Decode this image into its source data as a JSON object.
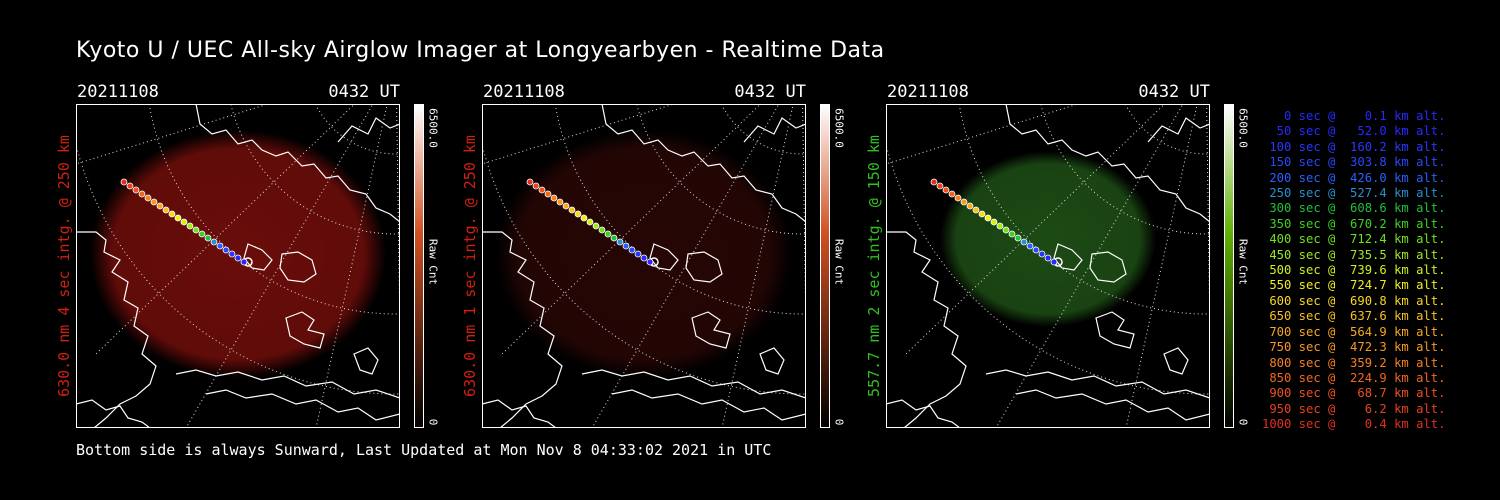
{
  "title": "Kyoto U / UEC All-sky Airglow Imager at Longyearbyen - Realtime Data",
  "footer": "Bottom side is always Sunward, Last Updated at Mon Nov  8 04:33:02 2021 in UTC",
  "panels": [
    {
      "date": "20211108",
      "time": "0432 UT",
      "ylabel": "630.0 nm 4 sec intg. @ 250 km",
      "ylabel_color": "#d02010",
      "cbar_max": "6500.0",
      "cbar_unit": "Raw Cnt",
      "cbar_min": "0",
      "cbar_top": "#ffffff",
      "cbar_mid": "#d05020",
      "cbar_bottom": "#000000",
      "glow": "#6a0d0a"
    },
    {
      "date": "20211108",
      "time": "0432 UT",
      "ylabel": "630.0 nm 1 sec intg. @ 250 km",
      "ylabel_color": "#d02010",
      "cbar_max": "6500.0",
      "cbar_unit": "Raw Cnt",
      "cbar_min": "0",
      "cbar_top": "#ffffff",
      "cbar_mid": "#d05020",
      "cbar_bottom": "#000000",
      "glow": "#260605"
    },
    {
      "date": "20211108",
      "time": "0432 UT",
      "ylabel": "557.7 nm 2 sec intg. @ 150 km",
      "ylabel_color": "#30c020",
      "cbar_max": "6500.0",
      "cbar_unit": "Raw Cnt",
      "cbar_min": "0",
      "cbar_top": "#ffffff",
      "cbar_mid": "#60b000",
      "cbar_bottom": "#000000",
      "glow": "#1c4a14"
    }
  ],
  "legend": [
    {
      "text": "   0 sec @    0.1 km alt.",
      "color": "#2828ff"
    },
    {
      "text": "  50 sec @   52.0 km alt.",
      "color": "#2828ff"
    },
    {
      "text": " 100 sec @  160.2 km alt.",
      "color": "#2838ff"
    },
    {
      "text": " 150 sec @  303.8 km alt.",
      "color": "#2848ff"
    },
    {
      "text": " 200 sec @  426.0 km alt.",
      "color": "#2860ff"
    },
    {
      "text": " 250 sec @  527.4 km alt.",
      "color": "#2890d0"
    },
    {
      "text": " 300 sec @  608.6 km alt.",
      "color": "#20c040"
    },
    {
      "text": " 350 sec @  670.2 km alt.",
      "color": "#40d020"
    },
    {
      "text": " 400 sec @  712.4 km alt.",
      "color": "#70e020"
    },
    {
      "text": " 450 sec @  735.5 km alt.",
      "color": "#a0e820"
    },
    {
      "text": " 500 sec @  739.6 km alt.",
      "color": "#d0f020"
    },
    {
      "text": " 550 sec @  724.7 km alt.",
      "color": "#f0f020"
    },
    {
      "text": " 600 sec @  690.8 km alt.",
      "color": "#f8d820"
    },
    {
      "text": " 650 sec @  637.6 km alt.",
      "color": "#f8c020"
    },
    {
      "text": " 700 sec @  564.9 km alt.",
      "color": "#f8a820"
    },
    {
      "text": " 750 sec @  472.3 km alt.",
      "color": "#f89820"
    },
    {
      "text": " 800 sec @  359.2 km alt.",
      "color": "#f88020"
    },
    {
      "text": " 850 sec @  224.9 km alt.",
      "color": "#f06820"
    },
    {
      "text": " 900 sec @   68.7 km alt.",
      "color": "#f05020"
    },
    {
      "text": " 950 sec @    6.2 km alt.",
      "color": "#e84020"
    },
    {
      "text": "1000 sec @    0.4 km alt.",
      "color": "#e03020"
    }
  ]
}
